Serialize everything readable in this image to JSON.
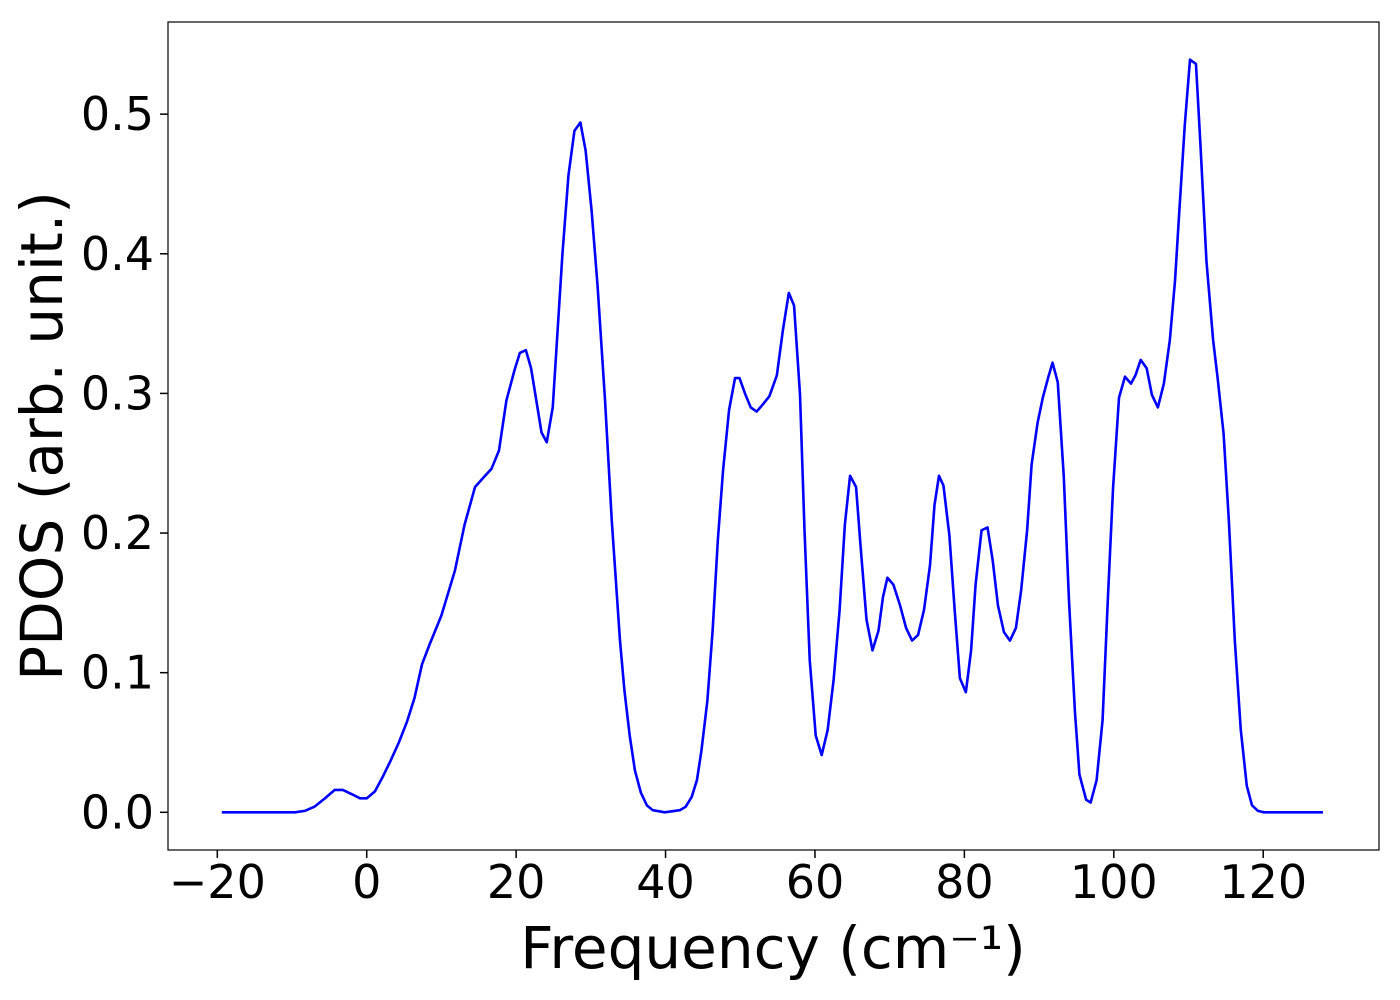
{
  "chart_data": {
    "type": "line",
    "x_label": "Frequency (cm⁻¹)",
    "y_label": "PDOS (arb. unit.)",
    "x": [
      -19.4,
      -9.6,
      -8.3,
      -7.0,
      -5.6,
      -4.3,
      -3.2,
      -2.0,
      -0.9,
      0.0,
      1.1,
      2.1,
      3.2,
      4.3,
      5.4,
      6.4,
      7.4,
      8.4,
      10.0,
      11.8,
      13.1,
      14.5,
      15.5,
      16.7,
      17.7,
      18.7,
      19.8,
      20.5,
      21.3,
      22.0,
      23.4,
      24.1,
      24.9,
      26.2,
      27.0,
      27.8,
      28.6,
      29.3,
      30.1,
      30.9,
      31.9,
      32.8,
      33.9,
      34.5,
      35.2,
      35.9,
      36.7,
      37.5,
      38.3,
      39.9,
      41.9,
      42.7,
      43.5,
      44.2,
      44.8,
      45.6,
      46.3,
      47.0,
      47.7,
      48.5,
      49.3,
      49.9,
      50.7,
      51.4,
      52.2,
      53.0,
      53.9,
      54.9,
      55.7,
      56.5,
      57.2,
      58.0,
      58.6,
      59.3,
      60.1,
      60.9,
      61.7,
      62.5,
      63.3,
      64.0,
      64.7,
      65.5,
      66.1,
      66.9,
      67.7,
      68.5,
      69.1,
      69.7,
      70.5,
      71.4,
      72.2,
      73.0,
      73.8,
      74.6,
      75.4,
      76.0,
      76.6,
      77.2,
      78.0,
      78.7,
      79.4,
      80.2,
      80.9,
      81.5,
      82.3,
      83.1,
      83.8,
      84.5,
      85.3,
      86.1,
      86.9,
      87.6,
      88.4,
      89.0,
      89.8,
      90.5,
      91.2,
      91.8,
      92.5,
      93.3,
      94.0,
      94.8,
      95.4,
      96.3,
      96.9,
      97.7,
      98.5,
      99.2,
      99.9,
      100.7,
      101.5,
      102.3,
      102.9,
      103.6,
      104.4,
      105.1,
      105.9,
      106.7,
      107.5,
      108.2,
      108.8,
      109.5,
      110.2,
      111.0,
      111.6,
      112.4,
      113.3,
      113.9,
      114.7,
      115.4,
      116.2,
      117.0,
      117.8,
      118.5,
      119.3,
      120.1,
      128.0
    ],
    "values": [
      0,
      0,
      0.001,
      0.004,
      0.01,
      0.016,
      0.016,
      0.013,
      0.01,
      0.01,
      0.015,
      0.025,
      0.037,
      0.05,
      0.065,
      0.082,
      0.106,
      0.12,
      0.141,
      0.173,
      0.206,
      0.233,
      0.239,
      0.246,
      0.259,
      0.295,
      0.317,
      0.329,
      0.331,
      0.318,
      0.272,
      0.265,
      0.29,
      0.4,
      0.456,
      0.488,
      0.494,
      0.474,
      0.431,
      0.377,
      0.295,
      0.209,
      0.123,
      0.087,
      0.055,
      0.03,
      0.014,
      0.005,
      0.0015,
      0,
      0.0015,
      0.004,
      0.011,
      0.023,
      0.044,
      0.08,
      0.13,
      0.195,
      0.245,
      0.288,
      0.311,
      0.311,
      0.299,
      0.29,
      0.287,
      0.292,
      0.298,
      0.313,
      0.345,
      0.372,
      0.363,
      0.299,
      0.202,
      0.109,
      0.055,
      0.041,
      0.059,
      0.095,
      0.145,
      0.206,
      0.241,
      0.233,
      0.191,
      0.138,
      0.116,
      0.13,
      0.154,
      0.168,
      0.163,
      0.148,
      0.132,
      0.123,
      0.127,
      0.145,
      0.177,
      0.22,
      0.241,
      0.234,
      0.198,
      0.145,
      0.096,
      0.086,
      0.116,
      0.163,
      0.202,
      0.204,
      0.18,
      0.148,
      0.129,
      0.123,
      0.132,
      0.159,
      0.202,
      0.249,
      0.279,
      0.297,
      0.311,
      0.322,
      0.308,
      0.241,
      0.152,
      0.072,
      0.027,
      0.009,
      0.007,
      0.023,
      0.066,
      0.152,
      0.232,
      0.297,
      0.312,
      0.307,
      0.313,
      0.324,
      0.318,
      0.299,
      0.29,
      0.307,
      0.338,
      0.381,
      0.433,
      0.492,
      0.539,
      0.536,
      0.478,
      0.395,
      0.338,
      0.311,
      0.271,
      0.209,
      0.123,
      0.059,
      0.019,
      0.005,
      0.001,
      0,
      0
    ],
    "color": "#0000ff",
    "xlim": [
      -26.6,
      135.5
    ],
    "ylim": [
      -0.027,
      0.566
    ],
    "xticks": [
      {
        "value": -20,
        "label": "−20"
      },
      0,
      20,
      40,
      60,
      80,
      100,
      120
    ],
    "yticks": [
      {
        "value": 0,
        "label": "0.0"
      },
      0.1,
      0.2,
      0.3,
      0.4,
      0.5
    ],
    "grid": false
  }
}
